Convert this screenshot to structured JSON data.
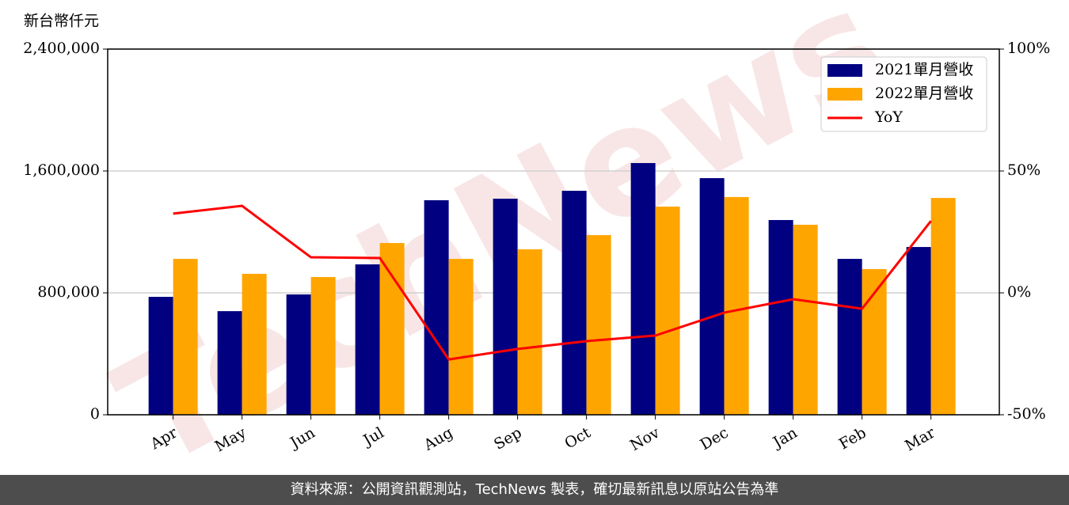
{
  "chart_data": {
    "type": "bar",
    "y_axis_label": "新台幣仟元",
    "watermark": "TechNews",
    "categories": [
      "Apr",
      "May",
      "Jun",
      "Jul",
      "Aug",
      "Sep",
      "Oct",
      "Nov",
      "Dec",
      "Jan",
      "Feb",
      "Mar"
    ],
    "series": [
      {
        "name": "2021單月營收",
        "color": "#000080",
        "values": [
          774000,
          680000,
          790000,
          987000,
          1408000,
          1418000,
          1470000,
          1652000,
          1553000,
          1278000,
          1023000,
          1101000
        ]
      },
      {
        "name": "2022單月營收",
        "color": "#ffa500",
        "values": [
          1023000,
          925000,
          904000,
          1127000,
          1023000,
          1086000,
          1179000,
          1366000,
          1429000,
          1247000,
          956000,
          1423000
        ]
      },
      {
        "name": "YoY",
        "color": "#ff0000",
        "type": "line",
        "axis": "y2",
        "values": [
          32.5,
          35.7,
          14.6,
          14.3,
          -27.3,
          -23.0,
          -19.8,
          -17.5,
          -8.1,
          -2.6,
          -6.5,
          29.5
        ]
      }
    ],
    "ylim": [
      0,
      2400000
    ],
    "yticks": [
      0,
      {
        "value": 800000,
        "label": "800,000"
      },
      {
        "value": 1600000,
        "label": "1,600,000"
      },
      {
        "value": 2400000,
        "label": "2,400,000"
      }
    ],
    "y2lim": [
      -50,
      100
    ],
    "y2ticks": [
      {
        "value": -50,
        "label": "-50%"
      },
      {
        "value": 0,
        "label": "0%"
      },
      {
        "value": 50,
        "label": "50%"
      },
      {
        "value": 100,
        "label": "100%"
      }
    ],
    "grid": true,
    "legend": "upper right",
    "footer": "資料來源：公開資訊觀測站，TechNews 製表，確切最新訊息以原站公告為準"
  }
}
